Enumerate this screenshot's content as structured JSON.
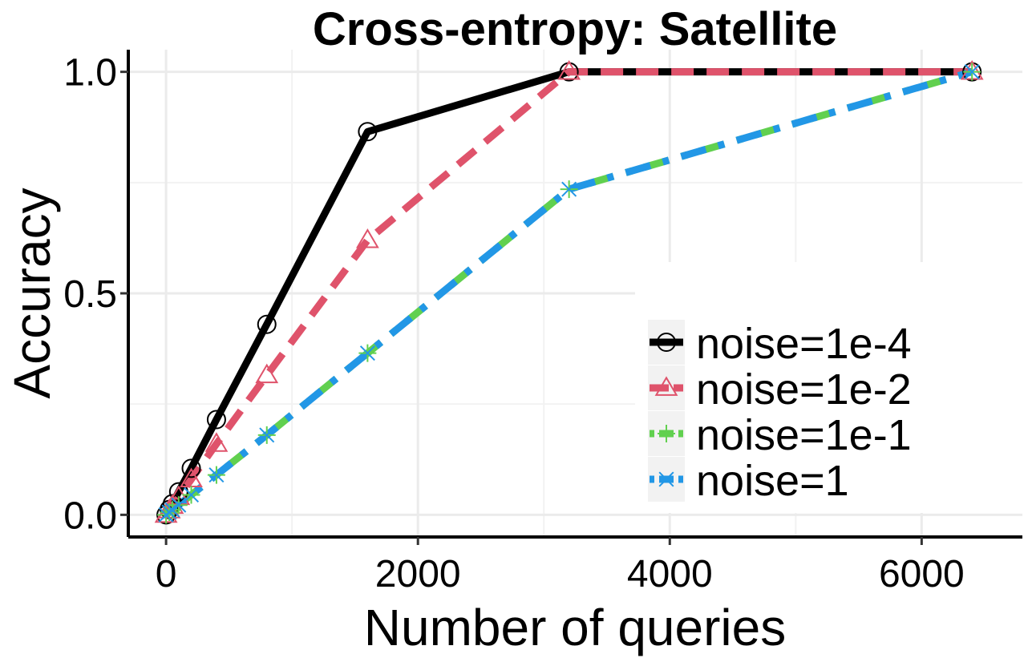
{
  "chart_data": {
    "type": "line",
    "title": "Cross-entropy: Satellite",
    "xlabel": "Number of queries",
    "ylabel": "Accuracy",
    "xlim": [
      -300,
      6800
    ],
    "ylim": [
      -0.05,
      1.05
    ],
    "xticks": [
      0,
      2000,
      4000,
      6000
    ],
    "xtick_labels": [
      "0",
      "2000",
      "4000",
      "6000"
    ],
    "yticks": [
      0.0,
      0.5,
      1.0
    ],
    "ytick_labels": [
      "0.0",
      "0.5",
      "1.0"
    ],
    "grid": true,
    "legend_position": "bottom-right",
    "series": [
      {
        "name": "noise=1e-4",
        "color": "#000000",
        "linestyle": "solid",
        "marker": "circle",
        "x": [
          0,
          25,
          50,
          100,
          200,
          400,
          800,
          1600,
          3200,
          6400
        ],
        "y": [
          0.0,
          0.012,
          0.025,
          0.052,
          0.105,
          0.215,
          0.43,
          0.865,
          1.0,
          1.0
        ]
      },
      {
        "name": "noise=1e-2",
        "color": "#DF536B",
        "linestyle": "dashed",
        "marker": "triangle",
        "x": [
          0,
          25,
          50,
          100,
          200,
          400,
          800,
          1600,
          3200,
          6400
        ],
        "y": [
          0.0,
          0.01,
          0.02,
          0.04,
          0.08,
          0.16,
          0.315,
          0.62,
          1.0,
          1.0
        ]
      },
      {
        "name": "noise=1e-1",
        "color": "#61D04F",
        "linestyle": "dotdash",
        "marker": "plus",
        "x": [
          0,
          25,
          50,
          100,
          200,
          400,
          800,
          1600,
          3200,
          6400
        ],
        "y": [
          0.0,
          0.006,
          0.011,
          0.022,
          0.045,
          0.09,
          0.18,
          0.365,
          0.735,
          1.0
        ]
      },
      {
        "name": "noise=1",
        "color": "#2297E6",
        "linestyle": "dotdash",
        "marker": "cross",
        "x": [
          0,
          25,
          50,
          100,
          200,
          400,
          800,
          1600,
          3200,
          6400
        ],
        "y": [
          0.0,
          0.006,
          0.011,
          0.022,
          0.045,
          0.09,
          0.18,
          0.365,
          0.735,
          1.0
        ]
      }
    ]
  }
}
